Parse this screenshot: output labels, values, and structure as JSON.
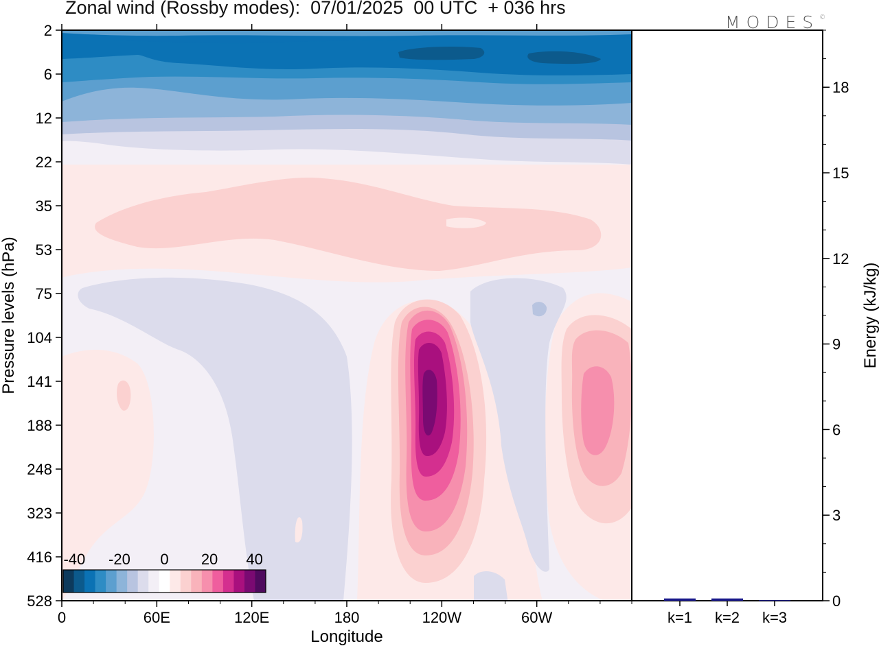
{
  "title": "Zonal wind (Rossby modes):  07/01/2025  00 UTC  + 036 hrs",
  "logo": "MODES",
  "logo_mark": "©",
  "chart_data": [
    {
      "type": "heatmap",
      "title": "Zonal wind (Rossby modes):  07/01/2025  00 UTC  + 036 hrs",
      "xlabel": "Longitude",
      "ylabel": "Pressure levels (hPa)",
      "x_ticks": [
        "0",
        "60E",
        "120E",
        "180",
        "120W",
        "60W"
      ],
      "y_ticks": [
        "2",
        "6",
        "12",
        "22",
        "35",
        "53",
        "75",
        "104",
        "141",
        "188",
        "248",
        "323",
        "416",
        "528"
      ],
      "colorbar": {
        "tick_labels": [
          "-40",
          "-20",
          "0",
          "20",
          "40"
        ],
        "range": [
          -45,
          45
        ],
        "step": 5,
        "colors": [
          "#0d3a5c",
          "#0c5a8c",
          "#0b72b4",
          "#2e8cc4",
          "#5c9fcf",
          "#8db4d9",
          "#b8c4e0",
          "#dcdcec",
          "#f3eff6",
          "#ffffff",
          "#fde9e8",
          "#fbd1d0",
          "#f9b3bb",
          "#f68fad",
          "#ef5e9e",
          "#d42f8f",
          "#a9107e",
          "#7a0a72",
          "#4f0a5e"
        ]
      },
      "features": [
        {
          "name": "stratospheric easterlies",
          "lon": [
            0,
            360
          ],
          "level": [
            2,
            16
          ],
          "value_range": [
            -40,
            -10
          ]
        },
        {
          "name": "subtropical jet core",
          "lon": [
            225,
            235
          ],
          "level": [
            141,
            188
          ],
          "value": 40
        },
        {
          "name": "secondary jet",
          "lon": [
            330,
            345
          ],
          "level": [
            141,
            248
          ],
          "value": 20
        },
        {
          "name": "weak westerly layer",
          "lon": [
            50,
            340
          ],
          "level": [
            30,
            60
          ],
          "value": 5
        }
      ]
    },
    {
      "type": "bar",
      "categories": [
        "k=1",
        "k=2",
        "k=3"
      ],
      "values": [
        0.08,
        0.08,
        0.02
      ],
      "ylabel": "Energy (kJ/kg)",
      "y_ticks": [
        "0",
        "3",
        "6",
        "9",
        "12",
        "15",
        "18"
      ],
      "ylim": [
        0,
        20
      ],
      "bar_color": "#1a1a8c"
    }
  ]
}
